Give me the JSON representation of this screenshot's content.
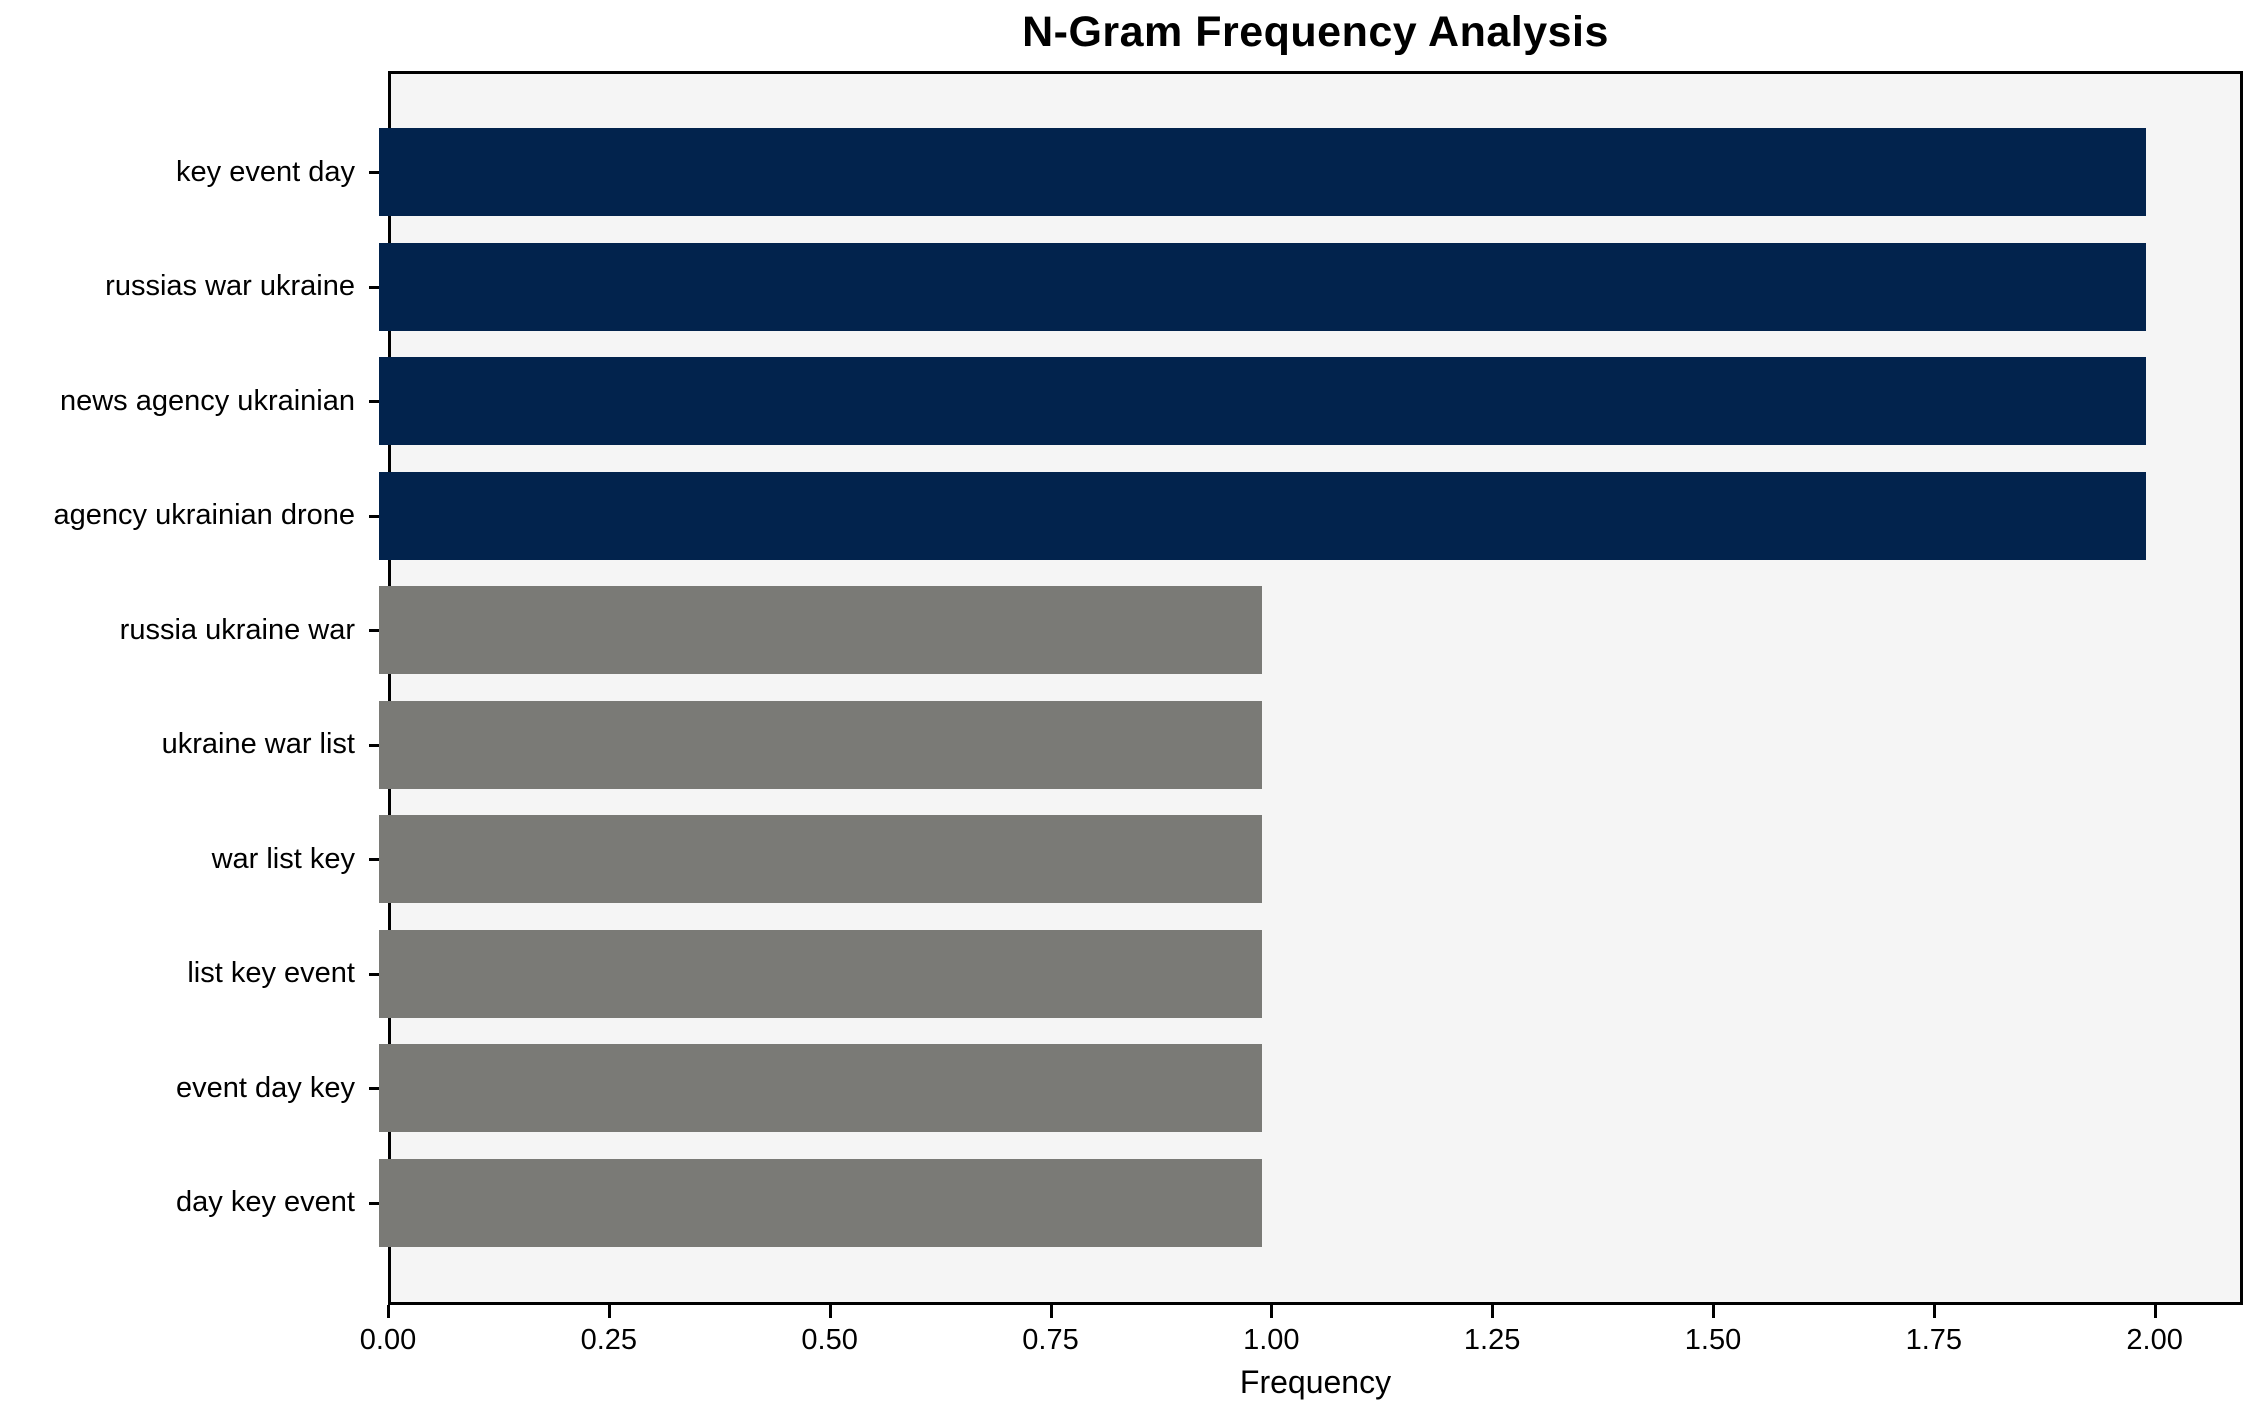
{
  "chart_data": {
    "type": "bar",
    "orientation": "horizontal",
    "title": "N-Gram Frequency Analysis",
    "xlabel": "Frequency",
    "categories": [
      "key event day",
      "russias war ukraine",
      "news agency ukrainian",
      "agency ukrainian drone",
      "russia ukraine war",
      "ukraine war list",
      "war list key",
      "list key event",
      "event day key",
      "day key event"
    ],
    "values": [
      2,
      2,
      2,
      2,
      1,
      1,
      1,
      1,
      1,
      1
    ],
    "bar_colors": [
      "#02234d",
      "#02234d",
      "#02234d",
      "#02234d",
      "#7a7a76",
      "#7a7a76",
      "#7a7a76",
      "#7a7a76",
      "#7a7a76",
      "#7a7a76"
    ],
    "xlim": [
      0,
      2.1
    ],
    "xtick_values": [
      0.0,
      0.25,
      0.5,
      0.75,
      1.0,
      1.25,
      1.5,
      1.75,
      2.0
    ],
    "xtick_labels": [
      "0.00",
      "0.25",
      "0.50",
      "0.75",
      "1.00",
      "1.25",
      "1.50",
      "1.75",
      "2.00"
    ],
    "grid": false,
    "legend_position": "none",
    "colors": {
      "highlight_bar": "#02234d",
      "default_bar": "#7a7a76",
      "plot_background": "#f5f5f5",
      "figure_background": "#ffffff",
      "spine": "#000000",
      "text": "#000000"
    }
  }
}
